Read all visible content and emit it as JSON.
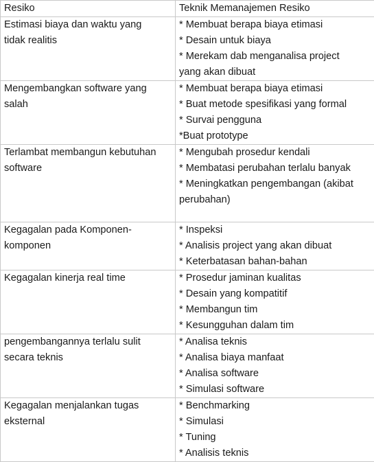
{
  "table": {
    "headers": [
      "Resiko",
      "Teknik Memanajemen Resiko"
    ],
    "rows": [
      {
        "risk": [
          "Estimasi biaya dan waktu yang",
          "tidak realitis"
        ],
        "techniques": [
          "* Membuat berapa biaya etimasi",
          "* Desain untuk biaya",
          "* Merekam dab menganalisa project",
          "yang akan dibuat"
        ]
      },
      {
        "risk": [
          "Mengembangkan software yang",
          "salah"
        ],
        "techniques": [
          "* Membuat berapa biaya etimasi",
          "* Buat metode spesifikasi yang formal",
          "* Survai pengguna",
          "*Buat prototype"
        ]
      },
      {
        "risk": [
          "Terlambat membangun kebutuhan",
          "software"
        ],
        "techniques": [
          "* Mengubah prosedur kendali",
          "* Membatasi perubahan terlalu banyak",
          "* Meningkatkan pengembangan (akibat",
          "perubahan)"
        ]
      },
      {
        "risk": [
          "Kegagalan pada Komponen-",
          "komponen"
        ],
        "techniques": [
          "* Inspeksi",
          "* Analisis project yang akan dibuat",
          "* Keterbatasan bahan-bahan"
        ]
      },
      {
        "risk": [
          "Kegagalan kinerja real time"
        ],
        "techniques": [
          "* Prosedur jaminan kualitas",
          "* Desain yang kompatitif",
          "* Membangun tim",
          "* Kesungguhan dalam tim"
        ]
      },
      {
        "risk": [
          "pengembangannya terlalu sulit",
          "secara teknis"
        ],
        "techniques": [
          "* Analisa teknis",
          "* Analisa biaya manfaat",
          "* Analisa software",
          "* Simulasi software"
        ]
      },
      {
        "risk": [
          "Kegagalan menjalankan tugas",
          "eksternal"
        ],
        "techniques": [
          "* Benchmarking",
          "* Simulasi",
          "* Tuning",
          "* Analisis teknis"
        ]
      }
    ]
  }
}
